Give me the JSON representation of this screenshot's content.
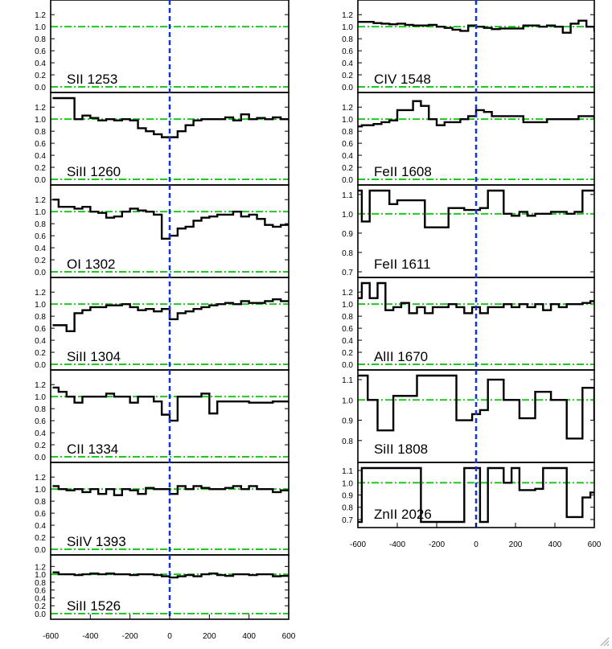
{
  "chart_data": [
    {
      "type": "line",
      "column": "left",
      "label": "SII 1253",
      "ylim": [
        0,
        1.35
      ],
      "yticks": [
        "0.0",
        "0.2",
        "0.4",
        "0.6",
        "0.8",
        "1.0",
        "1.2"
      ],
      "xlim": [
        -600,
        600
      ],
      "x": [],
      "values": []
    },
    {
      "type": "line",
      "column": "left",
      "label": "SiII 1260",
      "ylim": [
        0,
        1.35
      ],
      "yticks": [
        "0.0",
        "0.2",
        "0.4",
        "0.6",
        "0.8",
        "1.0",
        "1.2"
      ],
      "xlim": [
        -600,
        600
      ],
      "x": [
        -590,
        -520,
        -480,
        -440,
        -400,
        -360,
        -320,
        -280,
        -240,
        -200,
        -160,
        -120,
        -80,
        -40,
        0,
        40,
        80,
        120,
        160,
        200,
        240,
        280,
        320,
        360,
        400,
        440,
        480,
        520,
        560,
        600
      ],
      "values": [
        1.35,
        1.35,
        1.0,
        1.06,
        1.02,
        0.98,
        1.0,
        0.98,
        1.0,
        0.98,
        0.85,
        0.8,
        0.75,
        0.7,
        0.7,
        0.8,
        0.9,
        0.98,
        1.0,
        1.0,
        1.0,
        1.03,
        0.98,
        1.08,
        1.0,
        1.02,
        1.0,
        1.03,
        1.0,
        0.98
      ]
    },
    {
      "type": "line",
      "column": "left",
      "label": "OI 1302",
      "ylim": [
        0,
        1.35
      ],
      "yticks": [
        "0.0",
        "0.2",
        "0.4",
        "0.6",
        "0.8",
        "1.0",
        "1.2"
      ],
      "xlim": [
        -600,
        600
      ],
      "x": [
        -590,
        -560,
        -520,
        -480,
        -440,
        -400,
        -360,
        -320,
        -280,
        -240,
        -200,
        -160,
        -120,
        -80,
        -40,
        0,
        40,
        80,
        120,
        160,
        200,
        240,
        280,
        320,
        360,
        400,
        440,
        480,
        520,
        560,
        600
      ],
      "values": [
        1.2,
        1.08,
        1.08,
        1.05,
        1.08,
        1.0,
        0.98,
        0.9,
        0.92,
        1.0,
        1.05,
        1.02,
        1.0,
        0.95,
        0.55,
        0.6,
        0.72,
        0.75,
        0.85,
        0.9,
        0.92,
        0.95,
        0.95,
        1.0,
        0.92,
        0.95,
        0.88,
        0.78,
        0.75,
        0.78,
        0.8
      ]
    },
    {
      "type": "line",
      "column": "left",
      "label": "SiII 1304",
      "ylim": [
        0,
        1.35
      ],
      "yticks": [
        "0.0",
        "0.2",
        "0.4",
        "0.6",
        "0.8",
        "1.0",
        "1.2"
      ],
      "xlim": [
        -600,
        600
      ],
      "x": [
        -590,
        -560,
        -520,
        -480,
        -440,
        -400,
        -360,
        -320,
        -280,
        -240,
        -200,
        -160,
        -120,
        -80,
        -40,
        0,
        40,
        80,
        120,
        160,
        200,
        240,
        280,
        320,
        360,
        400,
        440,
        480,
        520,
        560,
        600
      ],
      "values": [
        0.65,
        0.65,
        0.55,
        0.85,
        0.9,
        0.95,
        0.95,
        0.98,
        0.98,
        1.0,
        0.95,
        0.9,
        0.92,
        0.88,
        0.92,
        0.75,
        0.85,
        0.88,
        0.92,
        0.95,
        0.98,
        1.0,
        1.02,
        1.0,
        1.05,
        1.02,
        1.02,
        1.05,
        1.08,
        1.05,
        1.05
      ]
    },
    {
      "type": "line",
      "column": "left",
      "label": "CII 1334",
      "ylim": [
        0,
        1.35
      ],
      "yticks": [
        "0.0",
        "0.2",
        "0.4",
        "0.6",
        "0.8",
        "1.0",
        "1.2"
      ],
      "xlim": [
        -600,
        600
      ],
      "x": [
        -590,
        -560,
        -520,
        -480,
        -440,
        -400,
        -360,
        -320,
        -280,
        -240,
        -200,
        -160,
        -120,
        -80,
        -40,
        0,
        40,
        80,
        120,
        160,
        200,
        240,
        280,
        320,
        360,
        400,
        440,
        480,
        520,
        560,
        600
      ],
      "values": [
        1.15,
        1.08,
        1.0,
        0.9,
        1.0,
        1.0,
        1.0,
        1.05,
        1.0,
        1.0,
        0.9,
        1.0,
        1.0,
        0.92,
        0.7,
        0.6,
        1.0,
        1.0,
        1.0,
        1.05,
        0.72,
        0.92,
        0.92,
        0.92,
        0.92,
        0.9,
        0.9,
        0.9,
        0.92,
        0.92,
        0.9
      ]
    },
    {
      "type": "line",
      "column": "left",
      "label": "SiIV 1393",
      "ylim": [
        0,
        1.35
      ],
      "yticks": [
        "0.0",
        "0.2",
        "0.4",
        "0.6",
        "0.8",
        "1.0",
        "1.2"
      ],
      "xlim": [
        -600,
        600
      ],
      "x": [
        -590,
        -560,
        -520,
        -480,
        -440,
        -400,
        -360,
        -320,
        -280,
        -240,
        -200,
        -160,
        -120,
        -80,
        -40,
        0,
        40,
        80,
        120,
        160,
        200,
        240,
        280,
        320,
        360,
        400,
        440,
        480,
        520,
        560,
        600
      ],
      "values": [
        1.05,
        1.0,
        0.98,
        1.0,
        0.95,
        1.0,
        0.92,
        1.0,
        0.9,
        1.0,
        0.98,
        0.92,
        1.02,
        1.0,
        1.0,
        0.92,
        1.05,
        1.0,
        1.05,
        1.02,
        1.0,
        1.0,
        1.02,
        1.05,
        1.0,
        1.05,
        1.0,
        1.0,
        0.95,
        0.98,
        0.96
      ]
    },
    {
      "type": "line",
      "column": "left",
      "label": "SiII 1526",
      "ylim": [
        0,
        1.35
      ],
      "yticks": [
        "0.0",
        "0.2",
        "0.4",
        "0.6",
        "0.8",
        "1.0",
        "1.2"
      ],
      "xlim": [
        -600,
        600
      ],
      "x": [
        -590,
        -560,
        -520,
        -480,
        -440,
        -400,
        -360,
        -320,
        -280,
        -240,
        -200,
        -160,
        -120,
        -80,
        -40,
        0,
        40,
        80,
        120,
        160,
        200,
        240,
        280,
        320,
        360,
        400,
        440,
        480,
        520,
        560,
        600
      ],
      "values": [
        1.05,
        1.0,
        1.0,
        0.98,
        1.0,
        1.02,
        1.0,
        1.02,
        1.0,
        1.0,
        0.98,
        1.0,
        1.0,
        0.98,
        0.95,
        0.92,
        0.95,
        0.98,
        0.95,
        1.0,
        1.02,
        0.98,
        0.96,
        1.0,
        1.0,
        0.98,
        1.0,
        1.0,
        0.95,
        0.96,
        0.94
      ]
    },
    {
      "type": "line",
      "column": "right",
      "label": "CIV 1548",
      "ylim": [
        0,
        1.35
      ],
      "yticks": [
        "0.0",
        "0.2",
        "0.4",
        "0.6",
        "0.8",
        "1.0",
        "1.2"
      ],
      "xlim": [
        -600,
        600
      ],
      "x": [
        -600,
        -520,
        -480,
        -440,
        -400,
        -360,
        -320,
        -280,
        -240,
        -200,
        -160,
        -120,
        -80,
        -40,
        0,
        40,
        80,
        120,
        160,
        200,
        240,
        280,
        320,
        360,
        400,
        440,
        480,
        520,
        560,
        600
      ],
      "values": [
        1.08,
        1.06,
        1.05,
        1.04,
        1.05,
        1.03,
        1.02,
        1.02,
        1.03,
        1.0,
        0.98,
        0.95,
        0.93,
        1.02,
        1.0,
        0.98,
        0.96,
        0.97,
        0.97,
        0.97,
        1.02,
        1.02,
        1.0,
        1.02,
        1.0,
        0.9,
        1.05,
        1.1,
        1.0,
        0.92
      ]
    },
    {
      "type": "line",
      "column": "right",
      "label": "FeII 1608",
      "ylim": [
        0,
        1.35
      ],
      "yticks": [
        "0.0",
        "0.2",
        "0.4",
        "0.6",
        "0.8",
        "1.0",
        "1.2"
      ],
      "xlim": [
        -600,
        600
      ],
      "x": [
        -600,
        -580,
        -520,
        -480,
        -440,
        -400,
        -360,
        -320,
        -280,
        -240,
        -200,
        -160,
        -120,
        -80,
        -40,
        0,
        40,
        80,
        120,
        160,
        200,
        240,
        280,
        320,
        360,
        400,
        440,
        480,
        520,
        560,
        600
      ],
      "values": [
        0.88,
        0.9,
        0.92,
        0.95,
        0.98,
        1.15,
        1.15,
        1.3,
        1.22,
        1.0,
        0.9,
        0.95,
        0.95,
        1.0,
        1.05,
        1.15,
        1.12,
        1.05,
        1.05,
        1.05,
        1.05,
        0.95,
        0.95,
        0.95,
        1.0,
        1.0,
        1.0,
        1.0,
        1.05,
        1.05,
        1.0
      ]
    },
    {
      "type": "line",
      "column": "right",
      "label": "FeII 1611",
      "ylim": [
        0.7,
        1.12
      ],
      "yticks": [
        "0.7",
        "0.8",
        "0.9",
        "1.0",
        "1.1"
      ],
      "xlim": [
        -600,
        600
      ],
      "x": [
        -600,
        -580,
        -540,
        -500,
        -440,
        -400,
        -360,
        -300,
        -260,
        -220,
        -180,
        -140,
        -100,
        -60,
        -20,
        20,
        60,
        100,
        140,
        180,
        220,
        260,
        300,
        340,
        380,
        420,
        460,
        500,
        540,
        580,
        600
      ],
      "values": [
        1.12,
        0.96,
        1.12,
        1.12,
        1.05,
        1.07,
        1.07,
        1.07,
        0.93,
        0.93,
        0.93,
        1.03,
        1.03,
        1.02,
        1.02,
        1.03,
        1.12,
        1.12,
        1.0,
        0.99,
        1.01,
        0.99,
        1.0,
        1.0,
        1.01,
        1.01,
        1.0,
        1.01,
        1.12,
        1.12,
        1.12
      ]
    },
    {
      "type": "line",
      "column": "right",
      "label": "AlII 1670",
      "ylim": [
        0,
        1.35
      ],
      "yticks": [
        "0.0",
        "0.2",
        "0.4",
        "0.6",
        "0.8",
        "1.0",
        "1.2"
      ],
      "xlim": [
        -600,
        600
      ],
      "x": [
        -600,
        -580,
        -540,
        -500,
        -460,
        -420,
        -380,
        -340,
        -300,
        -260,
        -220,
        -180,
        -140,
        -100,
        -60,
        -20,
        20,
        60,
        100,
        140,
        180,
        220,
        260,
        300,
        340,
        380,
        420,
        460,
        500,
        540,
        580,
        600
      ],
      "values": [
        1.1,
        1.35,
        1.1,
        1.35,
        0.9,
        0.95,
        1.02,
        0.85,
        0.95,
        0.85,
        0.95,
        0.95,
        1.0,
        0.95,
        0.85,
        0.95,
        0.85,
        0.95,
        0.95,
        1.0,
        0.95,
        1.0,
        0.95,
        1.0,
        0.9,
        1.0,
        0.95,
        1.0,
        1.0,
        1.02,
        1.05,
        1.02
      ]
    },
    {
      "type": "line",
      "column": "right",
      "label": "SiII 1808",
      "ylim": [
        0.72,
        1.12
      ],
      "yticks": [
        "0.8",
        "0.9",
        "1.0",
        "1.1"
      ],
      "xlim": [
        -600,
        600
      ],
      "x": [
        -600,
        -550,
        -500,
        -460,
        -420,
        -360,
        -300,
        -260,
        -220,
        -180,
        -140,
        -100,
        -60,
        -20,
        20,
        60,
        100,
        140,
        180,
        220,
        260,
        300,
        340,
        380,
        420,
        460,
        500,
        540,
        580,
        600
      ],
      "values": [
        1.12,
        1.0,
        0.85,
        0.85,
        1.02,
        1.02,
        1.12,
        1.12,
        1.12,
        1.12,
        1.12,
        0.9,
        0.9,
        0.93,
        0.95,
        1.1,
        1.1,
        1.0,
        1.0,
        0.91,
        0.91,
        1.04,
        1.04,
        1.0,
        1.0,
        0.81,
        0.81,
        1.06,
        1.06,
        0.9
      ]
    },
    {
      "type": "line",
      "column": "right",
      "label": "ZnII 2026",
      "ylim": [
        0.68,
        1.12
      ],
      "yticks": [
        "0.7",
        "0.8",
        "0.9",
        "1.0",
        "1.1"
      ],
      "xlim": [
        -600,
        600
      ],
      "x": [
        -600,
        -580,
        -540,
        -480,
        -400,
        -340,
        -280,
        -200,
        -140,
        -100,
        -60,
        -20,
        20,
        60,
        100,
        140,
        180,
        220,
        260,
        300,
        340,
        380,
        420,
        460,
        500,
        540,
        580,
        600
      ],
      "values": [
        0.68,
        1.12,
        1.12,
        1.12,
        1.12,
        1.12,
        0.68,
        0.68,
        0.68,
        0.68,
        1.12,
        1.12,
        0.68,
        1.12,
        1.12,
        1.0,
        1.12,
        0.94,
        0.94,
        0.95,
        1.12,
        1.12,
        1.12,
        0.72,
        0.72,
        0.88,
        0.92,
        0.92
      ]
    }
  ],
  "axes": {
    "x_ticks_left": [
      "-600",
      "-400",
      "-200",
      "0",
      "200",
      "400",
      "600"
    ],
    "x_ticks_right": [
      "-600",
      "-400",
      "-200",
      "0",
      "200",
      "400",
      "600"
    ]
  },
  "colors": {
    "reference_line": "#1ec81e",
    "velocity_zero": "#1133dd",
    "spectrum": "#000000"
  }
}
